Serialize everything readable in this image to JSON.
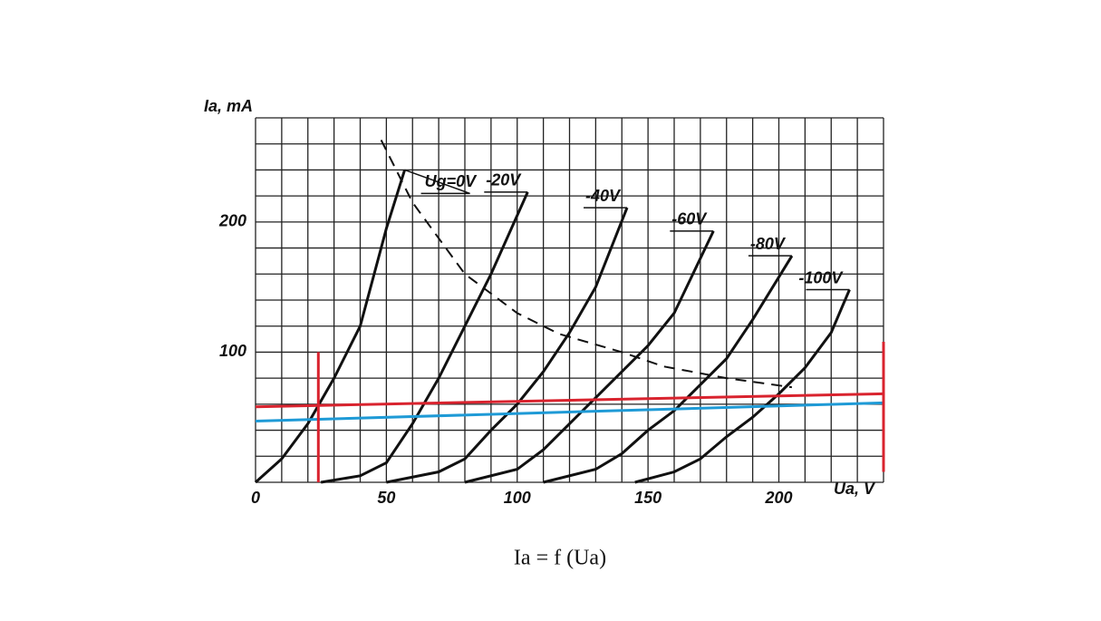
{
  "chart_data": {
    "type": "line",
    "xlabel": "Ua, V",
    "ylabel": "Ia, mA",
    "caption": "Ia = f (Ua)",
    "xlim": [
      0,
      240
    ],
    "ylim": [
      0,
      280
    ],
    "xticks": [
      0,
      50,
      100,
      150,
      200
    ],
    "yticks": [
      100,
      200
    ],
    "xminorticks": [
      0,
      10,
      20,
      30,
      40,
      50,
      60,
      70,
      80,
      90,
      100,
      110,
      120,
      130,
      140,
      150,
      160,
      170,
      180,
      190,
      200,
      210,
      220,
      230,
      240
    ],
    "yminorticks": [
      0,
      20,
      40,
      60,
      80,
      100,
      120,
      140,
      160,
      180,
      200,
      220,
      240,
      260,
      280
    ],
    "grid": true,
    "series": [
      {
        "name": "Ug=0V",
        "color": "#111111",
        "x": [
          0,
          10,
          20,
          30,
          40,
          50,
          57
        ],
        "values": [
          0,
          18,
          45,
          80,
          120,
          195,
          240
        ]
      },
      {
        "name": "-20V",
        "color": "#111111",
        "x": [
          25,
          40,
          50,
          60,
          70,
          80,
          90,
          104
        ],
        "values": [
          0,
          5,
          15,
          45,
          80,
          120,
          160,
          223
        ]
      },
      {
        "name": "-40V",
        "color": "#111111",
        "x": [
          50,
          70,
          80,
          90,
          100,
          110,
          120,
          130,
          142
        ],
        "values": [
          0,
          8,
          18,
          40,
          60,
          85,
          115,
          150,
          211
        ]
      },
      {
        "name": "-60V",
        "color": "#111111",
        "x": [
          80,
          100,
          110,
          120,
          130,
          140,
          150,
          160,
          175
        ],
        "values": [
          0,
          10,
          25,
          45,
          65,
          85,
          105,
          130,
          193
        ]
      },
      {
        "name": "-80V",
        "color": "#111111",
        "x": [
          110,
          130,
          140,
          150,
          160,
          170,
          180,
          190,
          205
        ],
        "values": [
          0,
          10,
          22,
          40,
          55,
          75,
          95,
          125,
          174
        ]
      },
      {
        "name": "-100V",
        "color": "#111111",
        "x": [
          145,
          160,
          170,
          180,
          190,
          200,
          210,
          220,
          227
        ],
        "values": [
          0,
          8,
          18,
          35,
          50,
          68,
          88,
          115,
          148
        ]
      },
      {
        "color": "#111111",
        "dashed": true,
        "x": [
          48,
          60,
          80,
          100,
          116,
          140,
          156,
          180,
          205
        ],
        "values": [
          263,
          215,
          160,
          130,
          114,
          100,
          89,
          80,
          73
        ]
      },
      {
        "color": "#d9232e",
        "x": [
          0,
          240
        ],
        "values": [
          58,
          68
        ]
      },
      {
        "color": "#1e9ad6",
        "x": [
          0,
          240
        ],
        "values": [
          47,
          61
        ]
      },
      {
        "color": "#d9232e",
        "x": [
          24,
          24
        ],
        "values": [
          0,
          100
        ]
      },
      {
        "color": "#d9232e",
        "x": [
          240,
          240
        ],
        "values": [
          8,
          108
        ]
      }
    ]
  }
}
